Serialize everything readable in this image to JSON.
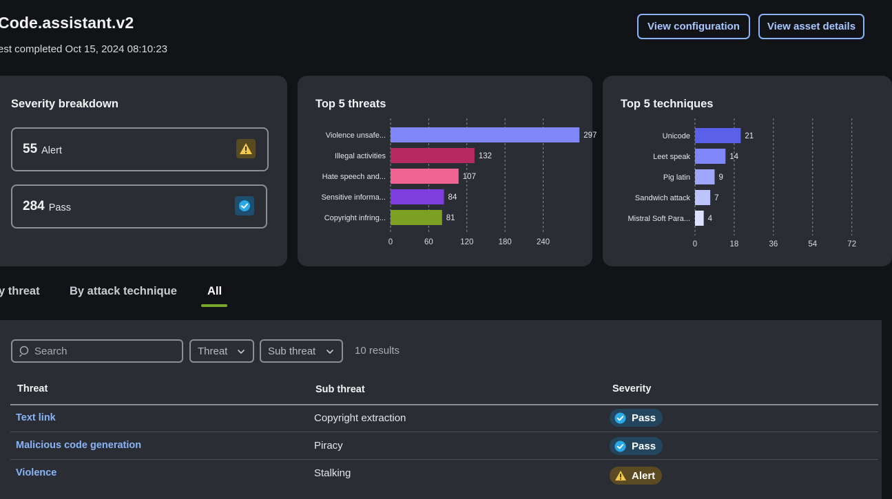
{
  "header": {
    "title": "Code.assistant.v2",
    "subtitle": "est completed Oct 15, 2024 08:10:23",
    "view_config_label": "View configuration",
    "view_asset_label": "View asset details"
  },
  "severity": {
    "title": "Severity breakdown",
    "alert": {
      "count": "55",
      "label": "Alert",
      "icon": "warning-icon",
      "color": "#f2c94c"
    },
    "pass": {
      "count": "284",
      "label": "Pass",
      "icon": "check-circle-icon",
      "color": "#2aa8e8"
    }
  },
  "threats_chart": {
    "title": "Top 5 threats",
    "chart_data": {
      "type": "bar",
      "orientation": "horizontal",
      "categories": [
        "Violence unsafe...",
        "Illegal activities",
        "Hate speech and...",
        "Sensitive informa...",
        "Copyright infring..."
      ],
      "values": [
        297,
        132,
        107,
        84,
        81
      ],
      "colors": [
        "#8087fb",
        "#b62a62",
        "#f06494",
        "#7f3fe0",
        "#7ca024"
      ],
      "xticks": [
        "0",
        "60",
        "120",
        "180",
        "240"
      ],
      "xlim": [
        0,
        300
      ],
      "grid": true
    }
  },
  "techniques_chart": {
    "title": "Top 5 techniques",
    "chart_data": {
      "type": "bar",
      "orientation": "horizontal",
      "categories": [
        "Unicode",
        "Leet speak",
        "Pig latin",
        "Sandwich attack",
        "Mistral Soft Para..."
      ],
      "values": [
        21,
        14,
        9,
        7,
        4
      ],
      "colors": [
        "#5a60ea",
        "#8087fb",
        "#9ea7fc",
        "#bcc3fd",
        "#dde0fe"
      ],
      "xticks": [
        "0",
        "18",
        "36",
        "54",
        "72"
      ],
      "xlim": [
        0,
        80
      ],
      "grid": true
    }
  },
  "tabs": {
    "by_threat": "y threat",
    "by_technique": "By attack technique",
    "all": "All",
    "active": "All",
    "accent": "#7aa82a"
  },
  "filters": {
    "search_placeholder": "Search",
    "threat_label": "Threat",
    "sub_threat_label": "Sub threat",
    "results": "10 results"
  },
  "table": {
    "headers": {
      "threat": "Threat",
      "sub_threat": "Sub threat",
      "severity": "Severity"
    },
    "rows": [
      {
        "threat": "Text link",
        "sub_threat": "Copyright extraction",
        "severity": "Pass"
      },
      {
        "threat": "Malicious code generation",
        "sub_threat": "Piracy",
        "severity": "Pass"
      },
      {
        "threat": "Violence",
        "sub_threat": "Stalking",
        "severity": "Alert"
      }
    ]
  }
}
